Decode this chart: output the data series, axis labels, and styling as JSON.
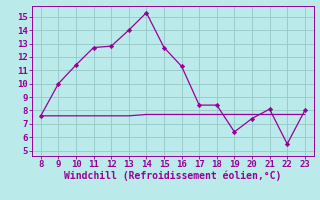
{
  "x_main": [
    8,
    9,
    10,
    11,
    12,
    13,
    14,
    15,
    16,
    17,
    18,
    19,
    20,
    21,
    22,
    23
  ],
  "y_main": [
    7.6,
    10.0,
    11.4,
    12.7,
    12.8,
    14.0,
    15.3,
    12.7,
    11.3,
    8.4,
    8.4,
    6.4,
    7.4,
    8.1,
    5.5,
    8.0
  ],
  "x_flat": [
    8,
    9,
    10,
    11,
    12,
    13,
    14,
    15,
    16,
    17,
    18,
    19,
    20,
    21,
    22,
    23
  ],
  "y_flat": [
    7.6,
    7.6,
    7.6,
    7.6,
    7.6,
    7.6,
    7.7,
    7.7,
    7.7,
    7.7,
    7.7,
    7.7,
    7.7,
    7.7,
    7.7,
    7.7
  ],
  "line_color": "#990099",
  "background_color": "#bbeaea",
  "grid_color": "#99cccc",
  "xlabel": "Windchill (Refroidissement éolien,°C)",
  "xlim": [
    7.5,
    23.5
  ],
  "ylim": [
    4.6,
    15.8
  ],
  "yticks": [
    5,
    6,
    7,
    8,
    9,
    10,
    11,
    12,
    13,
    14,
    15
  ],
  "xticks": [
    8,
    9,
    10,
    11,
    12,
    13,
    14,
    15,
    16,
    17,
    18,
    19,
    20,
    21,
    22,
    23
  ],
  "tick_color": "#990099",
  "label_color": "#990099",
  "xlabel_fontsize": 7.0,
  "tick_fontsize": 6.5
}
